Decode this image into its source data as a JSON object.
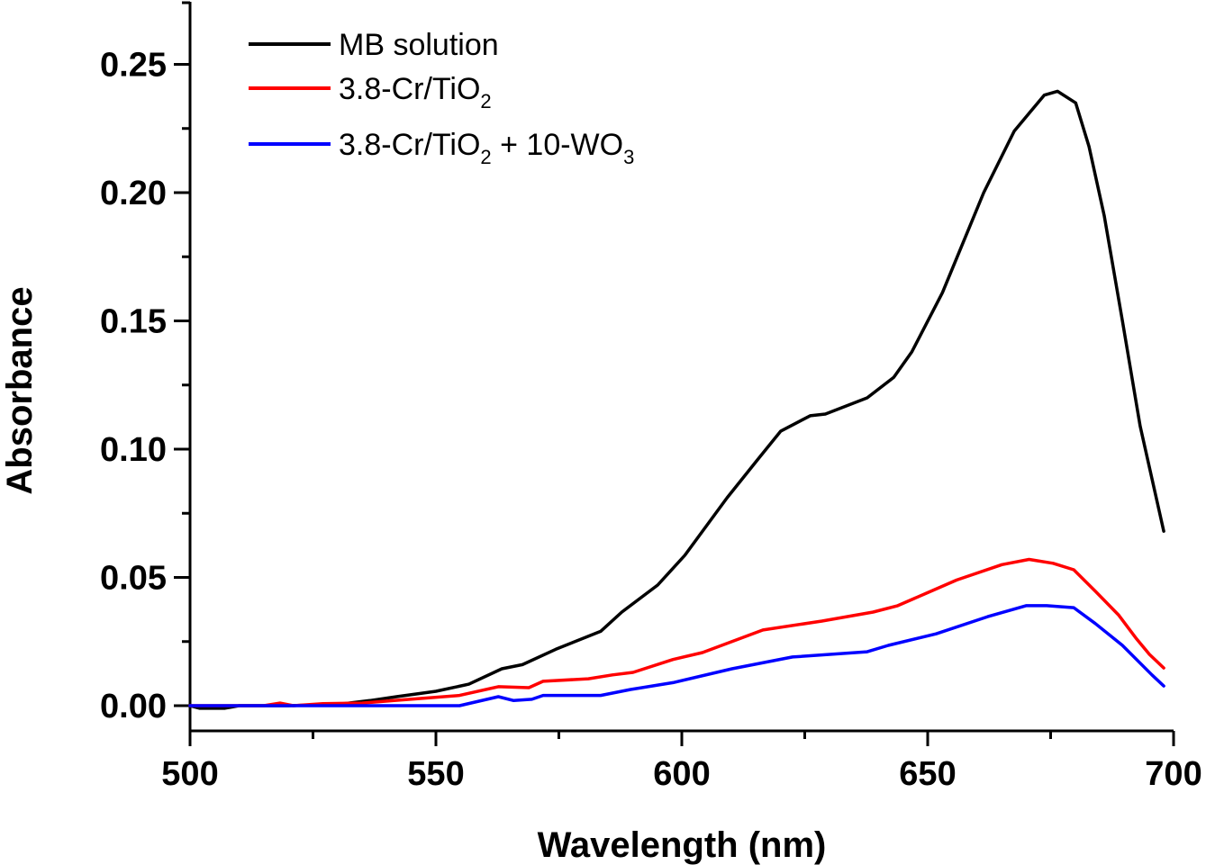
{
  "chart_data": {
    "type": "line",
    "title": "",
    "xlabel": "Wavelength (nm)",
    "ylabel": "Absorbance",
    "xlim": [
      500,
      700
    ],
    "ylim": [
      -0.01,
      0.275
    ],
    "xticks": [
      500,
      550,
      600,
      650,
      700
    ],
    "xtick_labels": [
      "500",
      "550",
      "600",
      "650",
      "700"
    ],
    "xminor_ticks": [
      525,
      575,
      625,
      675
    ],
    "yticks": [
      0.0,
      0.05,
      0.1,
      0.15,
      0.2,
      0.25
    ],
    "ytick_labels": [
      "0.00",
      "0.05",
      "0.10",
      "0.15",
      "0.20",
      "0.25"
    ],
    "yminor_ticks": [
      0.025,
      0.075,
      0.125,
      0.175,
      0.225,
      0.275
    ],
    "grid": false,
    "legend_position": "top-left",
    "series": [
      {
        "name": "MB solution",
        "legend_main": "MB solution",
        "legend_sub": "",
        "legend_rest": "",
        "legend_sub2": "",
        "color": "#000000",
        "x": [
          500,
          502,
          507,
          510,
          520,
          530,
          536.6,
          542,
          550,
          556.7,
          563.4,
          567.6,
          574.4,
          583.5,
          587.8,
          595.1,
          600.6,
          609.2,
          615.2,
          620.1,
          626.1,
          629.2,
          637.7,
          643.1,
          646.8,
          653.0,
          661.4,
          667.6,
          673.7,
          676.4,
          680.1,
          682.8,
          685.9,
          689.6,
          693.2,
          698.0
        ],
        "y": [
          0.0,
          -0.001,
          -0.001,
          0.0,
          0.0,
          0.0005,
          0.002,
          0.0035,
          0.0056,
          0.0084,
          0.0144,
          0.016,
          0.022,
          0.029,
          0.0365,
          0.047,
          0.0586,
          0.081,
          0.0954,
          0.107,
          0.113,
          0.1137,
          0.12,
          0.128,
          0.138,
          0.161,
          0.2,
          0.224,
          0.238,
          0.2395,
          0.235,
          0.218,
          0.191,
          0.15,
          0.109,
          0.068
        ]
      },
      {
        "name": "3.8-Cr/TiO2",
        "legend_main": "3.8-Cr/TiO",
        "legend_sub": "2",
        "legend_rest": "",
        "legend_sub2": "",
        "color": "#ff0000",
        "x": [
          500,
          515,
          518.3,
          521,
          527,
          535,
          541.5,
          554.8,
          562.7,
          568.9,
          571.8,
          581.0,
          585.9,
          590.1,
          598.2,
          604.2,
          616.5,
          628.5,
          638.9,
          643.9,
          649.9,
          655.9,
          665.1,
          670.6,
          675.5,
          679.7,
          684.1,
          688.8,
          692.5,
          695.1,
          698.0
        ],
        "y": [
          0.0,
          0.0,
          0.001,
          0.0,
          0.0008,
          0.001,
          0.002,
          0.004,
          0.0074,
          0.007,
          0.0095,
          0.0105,
          0.012,
          0.013,
          0.018,
          0.0207,
          0.0295,
          0.033,
          0.0365,
          0.039,
          0.044,
          0.049,
          0.055,
          0.057,
          0.0555,
          0.053,
          0.0446,
          0.0354,
          0.026,
          0.02,
          0.0147
        ]
      },
      {
        "name": "3.8-Cr/TiO2 + 10-WO3",
        "legend_main": "3.8-Cr/TiO",
        "legend_sub": "2",
        "legend_rest": " + 10-WO",
        "legend_sub2": "3",
        "color": "#0000ff",
        "x": [
          500,
          520,
          540,
          554.8,
          562.7,
          565.8,
          569.5,
          571.8,
          583.5,
          589.6,
          598.2,
          610.2,
          622.5,
          637.7,
          642.0,
          651.7,
          662.2,
          670.0,
          674.2,
          679.7,
          684.1,
          689.6,
          695.6,
          698.0
        ],
        "y": [
          0.0,
          0.0,
          0.0,
          0.0,
          0.0035,
          0.002,
          0.0025,
          0.004,
          0.004,
          0.0063,
          0.009,
          0.0144,
          0.019,
          0.021,
          0.0235,
          0.028,
          0.0347,
          0.039,
          0.039,
          0.0382,
          0.032,
          0.0235,
          0.012,
          0.0077
        ]
      }
    ]
  }
}
